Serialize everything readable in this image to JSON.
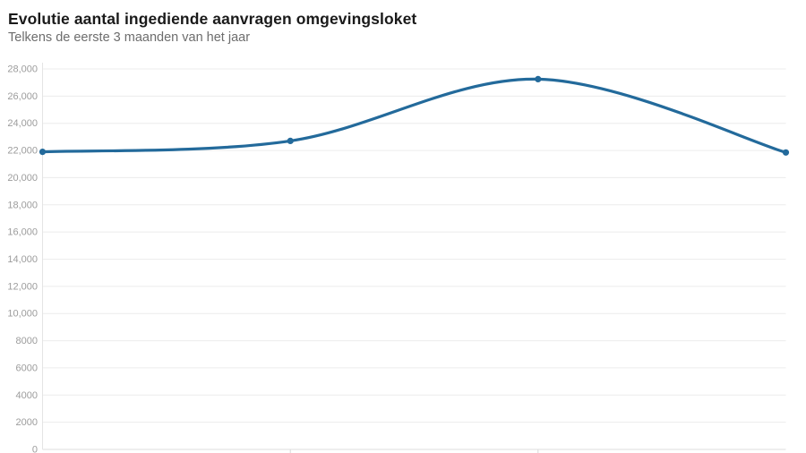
{
  "header": {
    "title": "Evolutie aantal ingediende aanvragen omgevingsloket",
    "subtitle": "Telkens de eerste 3 maanden van het jaar"
  },
  "chart_data": {
    "type": "line",
    "title": "Evolutie aantal ingediende aanvragen omgevingsloket",
    "subtitle": "Telkens de eerste 3 maanden van het jaar",
    "categories": [
      "",
      "",
      "",
      ""
    ],
    "x_tick_labels_visible": false,
    "values": [
      21900,
      22700,
      27250,
      21850
    ],
    "ylim": [
      0,
      28000
    ],
    "ylabel": "",
    "xlabel": "",
    "grid": "horizontal",
    "legend": "none",
    "smooth": true,
    "markers": true,
    "line_color": "#236a9b",
    "colors": {
      "grid": "#ececec",
      "zero_line": "#dedede",
      "axis_line": "#e4e4e4",
      "x_tick": "#d9d9d9",
      "tick_label": "#9c9c9c"
    },
    "y_ticks": [
      {
        "value": 0,
        "label": "0"
      },
      {
        "value": 2000,
        "label": "2000"
      },
      {
        "value": 4000,
        "label": "4000"
      },
      {
        "value": 6000,
        "label": "6000"
      },
      {
        "value": 8000,
        "label": "8000"
      },
      {
        "value": 10000,
        "label": "10,000"
      },
      {
        "value": 12000,
        "label": "12,000"
      },
      {
        "value": 14000,
        "label": "14,000"
      },
      {
        "value": 16000,
        "label": "16,000"
      },
      {
        "value": 18000,
        "label": "18,000"
      },
      {
        "value": 20000,
        "label": "20,000"
      },
      {
        "value": 22000,
        "label": "22,000"
      },
      {
        "value": 24000,
        "label": "24,000"
      },
      {
        "value": 26000,
        "label": "26,000"
      },
      {
        "value": 28000,
        "label": "28,000"
      }
    ]
  }
}
